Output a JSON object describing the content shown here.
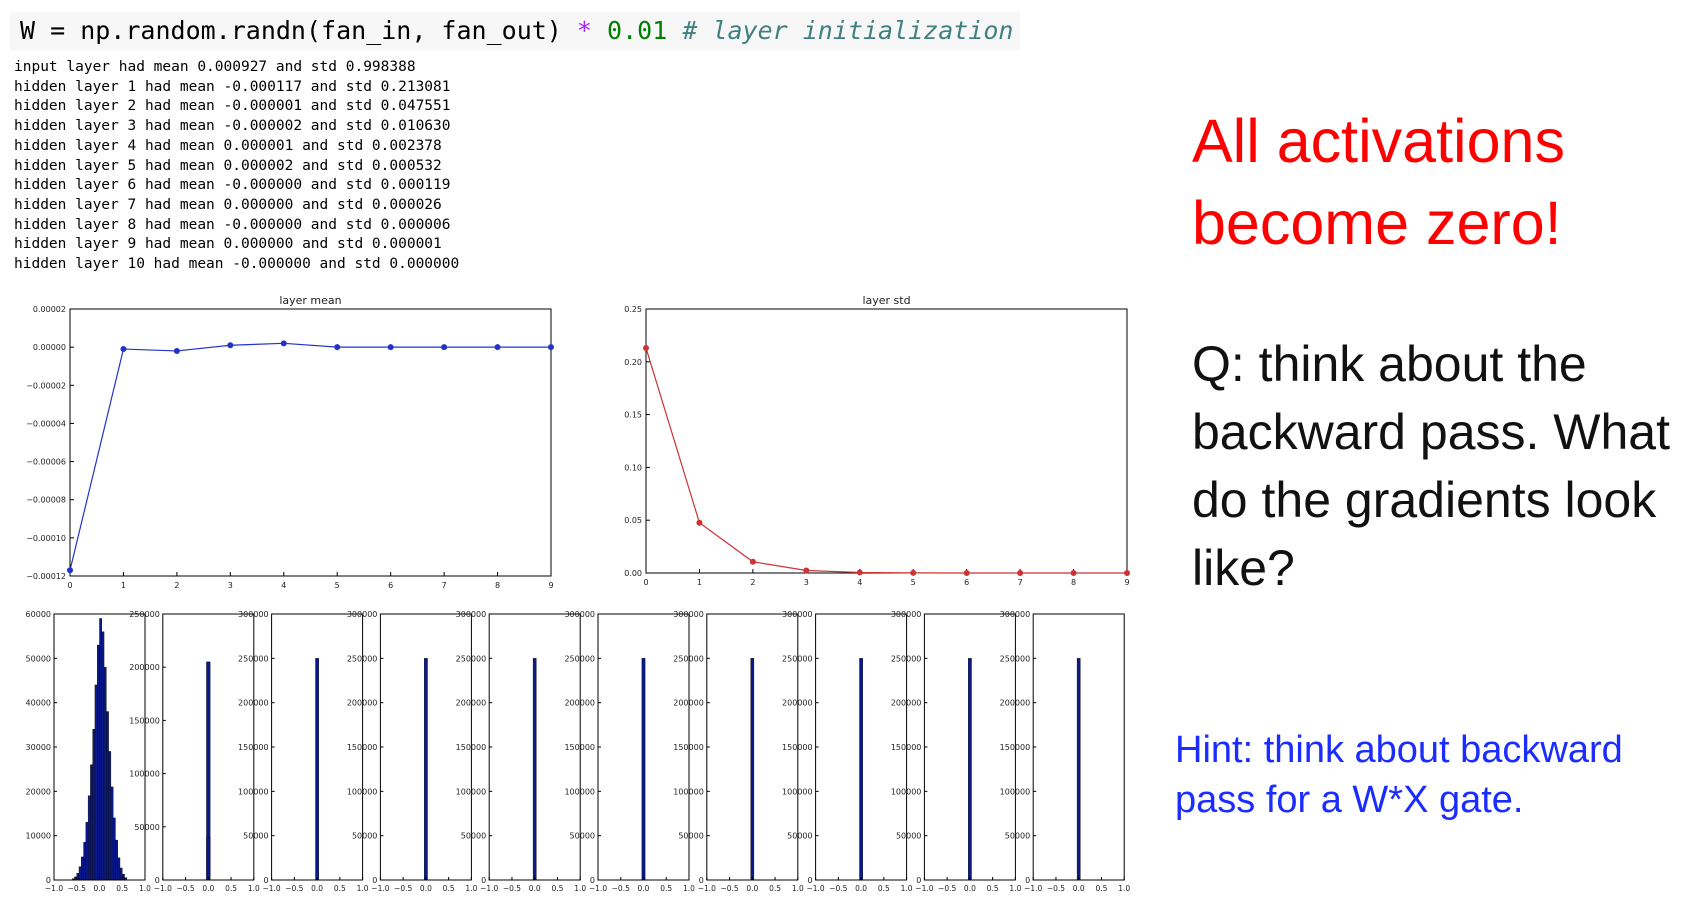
{
  "code": {
    "lhs": "W = np.random.randn(fan_in, fan_out)",
    "op": "*",
    "num": "0.01",
    "comment": "# layer initialization"
  },
  "output_lines": [
    "input layer had mean 0.000927 and std 0.998388",
    "hidden layer 1 had mean -0.000117 and std 0.213081",
    "hidden layer 2 had mean -0.000001 and std 0.047551",
    "hidden layer 3 had mean -0.000002 and std 0.010630",
    "hidden layer 4 had mean 0.000001 and std 0.002378",
    "hidden layer 5 had mean 0.000002 and std 0.000532",
    "hidden layer 6 had mean -0.000000 and std 0.000119",
    "hidden layer 7 had mean 0.000000 and std 0.000026",
    "hidden layer 8 had mean -0.000000 and std 0.000006",
    "hidden layer 9 had mean 0.000000 and std 0.000001",
    "hidden layer 10 had mean -0.000000 and std 0.000000"
  ],
  "text": {
    "headline": "All activations become zero!",
    "question": "Q: think about the backward pass. What do the gradients look like?",
    "hint": "Hint: think about backward pass for a W*X gate."
  },
  "colors": {
    "mean_line": "#2233cc",
    "std_line": "#cc3333",
    "hist_bar": "#0a1a8c",
    "headline": "#ff0000",
    "hint": "#1a2cff"
  },
  "chart_data": [
    {
      "type": "line",
      "title": "layer mean",
      "x": [
        0,
        1,
        2,
        3,
        4,
        5,
        6,
        7,
        8,
        9
      ],
      "series": [
        {
          "values": [
            -0.000117,
            -1e-06,
            -2e-06,
            1e-06,
            2e-06,
            0.0,
            0.0,
            0.0,
            0.0,
            0.0
          ]
        }
      ],
      "ylim": [
        -0.00012,
        2e-05
      ],
      "xlim": [
        0,
        9
      ],
      "yticks": [
        "0.00002",
        "0.00000",
        "−0.00002",
        "−0.00004",
        "−0.00006",
        "−0.00008",
        "−0.00010",
        "−0.00012"
      ],
      "ytick_values": [
        2e-05,
        0.0,
        -2e-05,
        -4e-05,
        -6e-05,
        -8e-05,
        -0.0001,
        -0.00012
      ],
      "xticks": [
        "0",
        "1",
        "2",
        "3",
        "4",
        "5",
        "6",
        "7",
        "8",
        "9"
      ]
    },
    {
      "type": "line",
      "title": "layer std",
      "x": [
        0,
        1,
        2,
        3,
        4,
        5,
        6,
        7,
        8,
        9
      ],
      "series": [
        {
          "values": [
            0.213081,
            0.047551,
            0.01063,
            0.002378,
            0.000532,
            0.000119,
            2.6e-05,
            6e-06,
            1e-06,
            0.0
          ]
        }
      ],
      "ylim": [
        0,
        0.25
      ],
      "xlim": [
        0,
        9
      ],
      "yticks": [
        "0.25",
        "0.20",
        "0.15",
        "0.10",
        "0.05",
        "0.00"
      ],
      "ytick_values": [
        0.25,
        0.2,
        0.15,
        0.1,
        0.05,
        0.0
      ],
      "xticks": [
        "0",
        "1",
        "2",
        "3",
        "4",
        "5",
        "6",
        "7",
        "8",
        "9"
      ]
    },
    {
      "type": "bar",
      "title": "",
      "panels": [
        {
          "ymax": 60000,
          "yticks": [
            "60000",
            "50000",
            "40000",
            "30000",
            "20000",
            "10000",
            "0"
          ],
          "ytick_values": [
            60000,
            50000,
            40000,
            30000,
            20000,
            10000,
            0
          ],
          "bins": [
            [
              -0.6,
              -0.55,
              300
            ],
            [
              -0.55,
              -0.5,
              700
            ],
            [
              -0.5,
              -0.45,
              1500
            ],
            [
              -0.45,
              -0.4,
              3000
            ],
            [
              -0.4,
              -0.35,
              5200
            ],
            [
              -0.35,
              -0.3,
              8500
            ],
            [
              -0.3,
              -0.25,
              13000
            ],
            [
              -0.25,
              -0.2,
              19000
            ],
            [
              -0.2,
              -0.15,
              26000
            ],
            [
              -0.15,
              -0.1,
              34000
            ],
            [
              -0.1,
              -0.05,
              44000
            ],
            [
              -0.05,
              0.0,
              53000
            ],
            [
              0.0,
              0.05,
              59000
            ],
            [
              0.05,
              0.1,
              56000
            ],
            [
              0.1,
              0.15,
              48000
            ],
            [
              0.15,
              0.2,
              38000
            ],
            [
              0.2,
              0.25,
              29000
            ],
            [
              0.25,
              0.3,
              21000
            ],
            [
              0.3,
              0.35,
              14000
            ],
            [
              0.35,
              0.4,
              9000
            ],
            [
              0.4,
              0.45,
              5000
            ],
            [
              0.45,
              0.5,
              2700
            ],
            [
              0.5,
              0.55,
              1300
            ],
            [
              0.55,
              0.6,
              500
            ]
          ]
        },
        {
          "ymax": 250000,
          "yticks": [
            "250000",
            "200000",
            "150000",
            "100000",
            "50000",
            "0"
          ],
          "ytick_values": [
            250000,
            200000,
            150000,
            100000,
            50000,
            0
          ],
          "bins": [
            [
              -0.04,
              0.04,
              205000
            ],
            [
              -0.04,
              0.04,
              40000
            ]
          ]
        },
        {
          "ymax": 300000,
          "yticks": [
            "300000",
            "250000",
            "200000",
            "150000",
            "100000",
            "50000",
            "0"
          ],
          "ytick_values": [
            300000,
            250000,
            200000,
            150000,
            100000,
            50000,
            0
          ],
          "bins": [
            [
              -0.035,
              0.035,
              250000
            ]
          ]
        },
        {
          "ymax": 300000,
          "yticks": [
            "300000",
            "250000",
            "200000",
            "150000",
            "100000",
            "50000",
            "0"
          ],
          "ytick_values": [
            300000,
            250000,
            200000,
            150000,
            100000,
            50000,
            0
          ],
          "bins": [
            [
              -0.035,
              0.035,
              250000
            ]
          ]
        },
        {
          "ymax": 300000,
          "yticks": [
            "300000",
            "250000",
            "200000",
            "150000",
            "100000",
            "50000",
            "0"
          ],
          "ytick_values": [
            300000,
            250000,
            200000,
            150000,
            100000,
            50000,
            0
          ],
          "bins": [
            [
              -0.035,
              0.035,
              250000
            ]
          ]
        },
        {
          "ymax": 300000,
          "yticks": [
            "300000",
            "250000",
            "200000",
            "150000",
            "100000",
            "50000",
            "0"
          ],
          "ytick_values": [
            300000,
            250000,
            200000,
            150000,
            100000,
            50000,
            0
          ],
          "bins": [
            [
              -0.035,
              0.035,
              250000
            ]
          ]
        },
        {
          "ymax": 300000,
          "yticks": [
            "300000",
            "250000",
            "200000",
            "150000",
            "100000",
            "50000",
            "0"
          ],
          "ytick_values": [
            300000,
            250000,
            200000,
            150000,
            100000,
            50000,
            0
          ],
          "bins": [
            [
              -0.035,
              0.035,
              250000
            ]
          ]
        },
        {
          "ymax": 300000,
          "yticks": [
            "300000",
            "250000",
            "200000",
            "150000",
            "100000",
            "50000",
            "0"
          ],
          "ytick_values": [
            300000,
            250000,
            200000,
            150000,
            100000,
            50000,
            0
          ],
          "bins": [
            [
              -0.035,
              0.035,
              250000
            ]
          ]
        },
        {
          "ymax": 300000,
          "yticks": [
            "300000",
            "250000",
            "200000",
            "150000",
            "100000",
            "50000",
            "0"
          ],
          "ytick_values": [
            300000,
            250000,
            200000,
            150000,
            100000,
            50000,
            0
          ],
          "bins": [
            [
              -0.035,
              0.035,
              250000
            ]
          ]
        },
        {
          "ymax": 300000,
          "yticks": [
            "300000",
            "250000",
            "200000",
            "150000",
            "100000",
            "50000",
            "0"
          ],
          "ytick_values": [
            300000,
            250000,
            200000,
            150000,
            100000,
            50000,
            0
          ],
          "bins": [
            [
              -0.035,
              0.035,
              250000
            ]
          ]
        }
      ],
      "xlim": [
        -1.0,
        1.0
      ],
      "xticks": [
        "−1.0",
        "−0.5",
        "0.0",
        "0.5",
        "1.0"
      ],
      "xtick_values": [
        -1.0,
        -0.5,
        0.0,
        0.5,
        1.0
      ]
    }
  ]
}
